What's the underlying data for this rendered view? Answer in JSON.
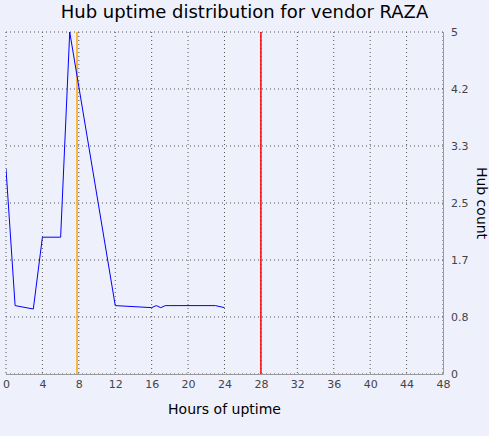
{
  "chart_data": {
    "type": "line",
    "title": "Hub uptime distribution for vendor RAZA",
    "x_label": "Hours of uptime",
    "y_label": "Hub count",
    "x": [
      0,
      1,
      3,
      4,
      6,
      7,
      12,
      16,
      16.5,
      17,
      17.5,
      18,
      23,
      24
    ],
    "values": [
      3,
      1,
      0.95,
      2,
      2,
      5,
      1,
      0.97,
      1,
      0.97,
      1,
      1,
      1,
      0.97
    ],
    "color": "#0000ff",
    "xlim": [
      0,
      48
    ],
    "xticks": [
      0,
      4,
      8,
      12,
      16,
      20,
      24,
      28,
      32,
      36,
      40,
      44,
      48
    ],
    "ylim": [
      0,
      5
    ],
    "yticks": [
      0,
      {
        "value": 0.8333,
        "label": "0.8"
      },
      {
        "value": 1.6667,
        "label": "1.7"
      },
      2.5,
      {
        "value": 3.3333,
        "label": "3.3"
      },
      {
        "value": 4.1667,
        "label": "4.2"
      },
      5
    ],
    "grid": true,
    "vertical_lines": [
      {
        "x": 7.8,
        "color": "#ffa500"
      },
      {
        "x": 28,
        "color": "#ff0000"
      }
    ]
  }
}
